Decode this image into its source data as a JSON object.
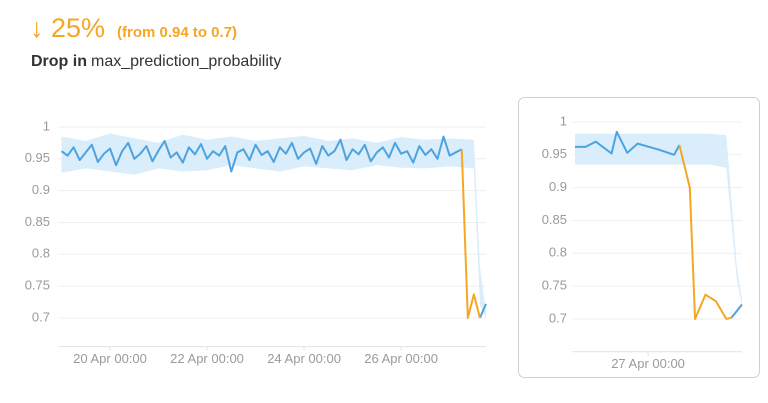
{
  "header": {
    "change": "↓ 25%",
    "detail": "(from 0.94 to 0.7)",
    "lead": "Drop in",
    "metric": "max_prediction_probability"
  },
  "chart_data": [
    {
      "type": "line",
      "x": [
        "19 Apr 00:00",
        "19 Apr 03:00",
        "19 Apr 06:00",
        "19 Apr 09:00",
        "19 Apr 12:00",
        "19 Apr 15:00",
        "19 Apr 18:00",
        "19 Apr 21:00",
        "20 Apr 00:00",
        "20 Apr 03:00",
        "20 Apr 06:00",
        "20 Apr 09:00",
        "20 Apr 12:00",
        "20 Apr 15:00",
        "20 Apr 18:00",
        "20 Apr 21:00",
        "21 Apr 00:00",
        "21 Apr 03:00",
        "21 Apr 06:00",
        "21 Apr 09:00",
        "21 Apr 12:00",
        "21 Apr 15:00",
        "21 Apr 18:00",
        "21 Apr 21:00",
        "22 Apr 00:00",
        "22 Apr 03:00",
        "22 Apr 06:00",
        "22 Apr 09:00",
        "22 Apr 12:00",
        "22 Apr 15:00",
        "22 Apr 18:00",
        "22 Apr 21:00",
        "23 Apr 00:00",
        "23 Apr 03:00",
        "23 Apr 06:00",
        "23 Apr 09:00",
        "23 Apr 12:00",
        "23 Apr 15:00",
        "23 Apr 18:00",
        "23 Apr 21:00",
        "24 Apr 00:00",
        "24 Apr 03:00",
        "24 Apr 06:00",
        "24 Apr 09:00",
        "24 Apr 12:00",
        "24 Apr 15:00",
        "24 Apr 18:00",
        "24 Apr 21:00",
        "25 Apr 00:00",
        "25 Apr 03:00",
        "25 Apr 06:00",
        "25 Apr 09:00",
        "25 Apr 12:00",
        "25 Apr 15:00",
        "25 Apr 18:00",
        "25 Apr 21:00",
        "26 Apr 00:00",
        "26 Apr 03:00",
        "26 Apr 06:00",
        "26 Apr 09:00",
        "26 Apr 12:00",
        "26 Apr 15:00",
        "26 Apr 18:00",
        "26 Apr 21:00",
        "27 Apr 00:00",
        "27 Apr 03:00",
        "27 Apr 06:00",
        "27 Apr 09:00",
        "27 Apr 12:00",
        "27 Apr 15:00",
        "27 Apr 18:00"
      ],
      "series": [
        {
          "color": "#4da3e0",
          "values": [
            0.962,
            0.955,
            0.968,
            0.948,
            0.96,
            0.972,
            0.945,
            0.958,
            0.966,
            0.94,
            0.962,
            0.975,
            0.95,
            0.958,
            0.97,
            0.946,
            0.963,
            0.978,
            0.952,
            0.96,
            0.944,
            0.968,
            0.957,
            0.973,
            0.95,
            0.962,
            0.955,
            0.97,
            0.93,
            0.96,
            0.965,
            0.948,
            0.972,
            0.956,
            0.962,
            0.945,
            0.968,
            0.958,
            0.975,
            0.95,
            0.96,
            0.966,
            0.942,
            0.97,
            0.955,
            0.962,
            0.98,
            0.948,
            0.965,
            0.957,
            0.972,
            0.946,
            0.96,
            0.968,
            0.952,
            0.975,
            0.958,
            0.962,
            0.944,
            0.97,
            0.956,
            0.965,
            0.95,
            0.985,
            0.955,
            0.96,
            0.965,
            null,
            null,
            0.7,
            0.722
          ]
        },
        {
          "color": "#f5a623",
          "values": [
            null,
            null,
            null,
            null,
            null,
            null,
            null,
            null,
            null,
            null,
            null,
            null,
            null,
            null,
            null,
            null,
            null,
            null,
            null,
            null,
            null,
            null,
            null,
            null,
            null,
            null,
            null,
            null,
            null,
            null,
            null,
            null,
            null,
            null,
            null,
            null,
            null,
            null,
            null,
            null,
            null,
            null,
            null,
            null,
            null,
            null,
            null,
            null,
            null,
            null,
            null,
            null,
            null,
            null,
            null,
            null,
            null,
            null,
            null,
            null,
            null,
            null,
            null,
            null,
            null,
            null,
            0.965,
            0.7,
            0.737,
            0.7,
            null
          ]
        }
      ],
      "band": {
        "color": "#d6ebfa",
        "x": [
          "19 Apr 00:00",
          "19 Apr 12:00",
          "20 Apr 00:00",
          "20 Apr 12:00",
          "21 Apr 00:00",
          "21 Apr 12:00",
          "22 Apr 00:00",
          "22 Apr 12:00",
          "23 Apr 00:00",
          "23 Apr 12:00",
          "24 Apr 00:00",
          "24 Apr 12:00",
          "25 Apr 00:00",
          "25 Apr 12:00",
          "26 Apr 00:00",
          "26 Apr 12:00",
          "27 Apr 00:00",
          "27 Apr 12:00",
          "27 Apr 15:00",
          "27 Apr 18:00"
        ],
        "upper": [
          0.985,
          0.978,
          0.99,
          0.982,
          0.975,
          0.988,
          0.98,
          0.985,
          0.978,
          0.982,
          0.986,
          0.978,
          0.982,
          0.975,
          0.984,
          0.98,
          0.982,
          0.98,
          0.78,
          0.71
        ],
        "lower": [
          0.928,
          0.935,
          0.93,
          0.925,
          0.935,
          0.93,
          0.932,
          0.94,
          0.935,
          0.93,
          0.938,
          0.935,
          0.932,
          0.94,
          0.936,
          0.935,
          0.938,
          0.935,
          0.72,
          0.7
        ]
      },
      "xlim": [
        "19 Apr 00:00",
        "27 Apr 18:00"
      ],
      "xticks": [
        "20 Apr 00:00",
        "22 Apr 00:00",
        "24 Apr 00:00",
        "26 Apr 00:00"
      ],
      "ylim": [
        0.655,
        1.01
      ],
      "yticks": [
        {
          "value": 0.7,
          "label": "0.7"
        },
        {
          "value": 0.75,
          "label": "0.75"
        },
        {
          "value": 0.8,
          "label": "0.8"
        },
        {
          "value": 0.85,
          "label": "0.85"
        },
        {
          "value": 0.9,
          "label": "0.9"
        },
        {
          "value": 0.95,
          "label": "0.95"
        },
        1
      ],
      "grid": true
    },
    {
      "type": "line",
      "x": [
        "26 Apr 10:00",
        "26 Apr 12:00",
        "26 Apr 14:00",
        "26 Apr 17:00",
        "26 Apr 18:00",
        "26 Apr 20:00",
        "26 Apr 22:00",
        "27 Apr 02:00",
        "27 Apr 05:00",
        "27 Apr 06:00",
        "27 Apr 08:00",
        "27 Apr 09:00",
        "27 Apr 11:00",
        "27 Apr 13:00",
        "27 Apr 15:00",
        "27 Apr 16:00",
        "27 Apr 18:00"
      ],
      "series": [
        {
          "color": "#4da3e0",
          "values": [
            0.962,
            0.962,
            0.97,
            0.952,
            0.985,
            0.953,
            0.967,
            0.958,
            0.95,
            0.965,
            null,
            null,
            null,
            null,
            null,
            0.702,
            0.722
          ]
        },
        {
          "color": "#f5a623",
          "values": [
            null,
            null,
            null,
            null,
            null,
            null,
            null,
            null,
            null,
            0.965,
            0.9,
            0.7,
            0.737,
            0.727,
            0.7,
            0.702,
            null
          ]
        }
      ],
      "band": {
        "color": "#d6ebfa",
        "x": [
          "26 Apr 10:00",
          "27 Apr 12:00",
          "27 Apr 15:00",
          "27 Apr 17:00",
          "27 Apr 18:00"
        ],
        "upper": [
          0.982,
          0.982,
          0.98,
          0.78,
          0.73
        ],
        "lower": [
          0.935,
          0.935,
          0.93,
          0.76,
          0.72
        ]
      },
      "xlim": [
        "26 Apr 10:00",
        "27 Apr 18:00"
      ],
      "xticks": [
        "27 Apr 00:00"
      ],
      "ylim": [
        0.65,
        1.01
      ],
      "yticks": [
        {
          "value": 0.7,
          "label": "0.7"
        },
        {
          "value": 0.75,
          "label": "0.75"
        },
        {
          "value": 0.8,
          "label": "0.8"
        },
        {
          "value": 0.85,
          "label": "0.85"
        },
        {
          "value": 0.9,
          "label": "0.9"
        },
        {
          "value": 0.95,
          "label": "0.95"
        },
        1
      ],
      "grid": true
    }
  ]
}
